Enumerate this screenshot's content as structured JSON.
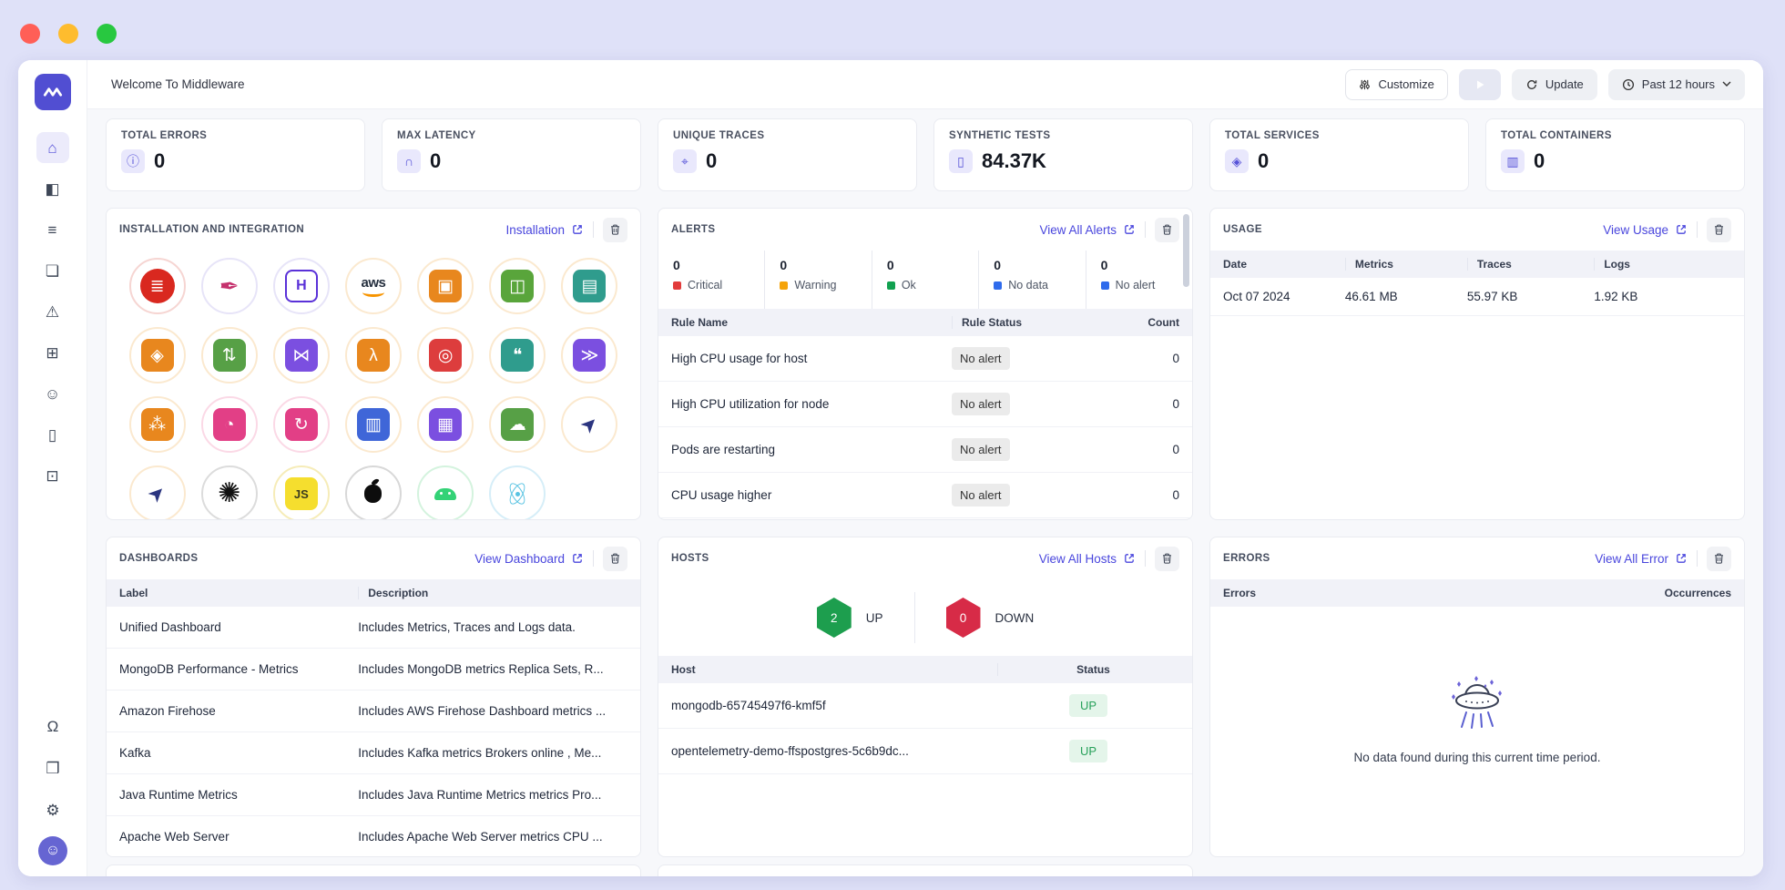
{
  "header": {
    "title": "Welcome To Middleware",
    "customize_label": "Customize",
    "update_label": "Update",
    "time_range_label": "Past 12 hours"
  },
  "sidebar": {
    "top_icons": [
      {
        "name": "home",
        "glyph": "⌂",
        "active": true
      },
      {
        "name": "infrastructure",
        "glyph": "◧",
        "active": false
      },
      {
        "name": "logs",
        "glyph": "≡",
        "active": false
      },
      {
        "name": "traces",
        "glyph": "❏",
        "active": false
      },
      {
        "name": "alerts",
        "glyph": "⚠",
        "active": false
      },
      {
        "name": "add-widget",
        "glyph": "⊞",
        "active": false
      },
      {
        "name": "ai-bot",
        "glyph": "☺",
        "active": false
      },
      {
        "name": "synthetic-tests",
        "glyph": "▯",
        "active": false
      },
      {
        "name": "processor",
        "glyph": "⊡",
        "active": false
      }
    ],
    "bottom_icons": [
      {
        "name": "support-headset",
        "glyph": "Ω"
      },
      {
        "name": "package",
        "glyph": "❒"
      },
      {
        "name": "settings",
        "glyph": "⚙"
      }
    ],
    "avatar_glyph": "☺"
  },
  "stats": [
    {
      "label": "TOTAL ERRORS",
      "value": "0",
      "icon": "error-info",
      "glyph": "ⓘ"
    },
    {
      "label": "MAX LATENCY",
      "value": "0",
      "icon": "latency-gauge",
      "glyph": "∩"
    },
    {
      "label": "UNIQUE TRACES",
      "value": "0",
      "icon": "trace-search",
      "glyph": "⌖"
    },
    {
      "label": "SYNTHETIC TESTS",
      "value": "84.37K",
      "icon": "synthetic-mobile",
      "glyph": "▯"
    },
    {
      "label": "TOTAL SERVICES",
      "value": "0",
      "icon": "services-hex",
      "glyph": "◈"
    },
    {
      "label": "TOTAL CONTAINERS",
      "value": "0",
      "icon": "containers",
      "glyph": "▥"
    }
  ],
  "installation": {
    "title": "INSTALLATION AND INTEGRATION",
    "link_label": "Installation",
    "icons": [
      {
        "name": "redis",
        "ring": "#f6d5d2",
        "tile": "#d9281f",
        "shape": "circle",
        "glyph": "≣"
      },
      {
        "name": "apache",
        "ring": "#e7e4f8",
        "tile": "none",
        "glyph": "✒",
        "color": "#c5316d",
        "size": "26"
      },
      {
        "name": "h-framework",
        "ring": "#e7e4f8",
        "tile": "outline",
        "glyph": "H",
        "color": "#5a31d8"
      },
      {
        "name": "aws",
        "ring": "#fbe9cf",
        "special": "aws",
        "label": "aws"
      },
      {
        "name": "aws-chip",
        "ring": "#fbe9cf",
        "tile": "#e8871e",
        "glyph": "▣"
      },
      {
        "name": "s3-bucket",
        "ring": "#fbe9cf",
        "tile": "#59a53b",
        "glyph": "◫"
      },
      {
        "name": "doc-scan",
        "ring": "#fbe9cf",
        "tile": "#2f9c8d",
        "glyph": "▤"
      },
      {
        "name": "hexagon-service",
        "ring": "#fbe9cf",
        "tile": "#e8871e",
        "glyph": "◈"
      },
      {
        "name": "scale-cylinder",
        "ring": "#fbe9cf",
        "tile": "#57a046",
        "glyph": "⇅"
      },
      {
        "name": "pipeline",
        "ring": "#fbe9cf",
        "tile": "#7b4fe0",
        "glyph": "⋈"
      },
      {
        "name": "lambda",
        "ring": "#fbe9cf",
        "tile": "#e8871e",
        "glyph": "λ"
      },
      {
        "name": "firewall",
        "ring": "#fbe9cf",
        "tile": "#dd3d3d",
        "glyph": "◎"
      },
      {
        "name": "chat-service",
        "ring": "#fbe9cf",
        "tile": "#2f9c8d",
        "glyph": "❝"
      },
      {
        "name": "streams",
        "ring": "#fbe9cf",
        "tile": "#7b4fe0",
        "glyph": "≫"
      },
      {
        "name": "share-nodes",
        "ring": "#fbe9cf",
        "tile": "#e8871e",
        "glyph": "⁂"
      },
      {
        "name": "gauge-pink",
        "ring": "#fbd9e6",
        "tile": "#e23f86",
        "glyph": "◔"
      },
      {
        "name": "sync-pink",
        "ring": "#fbd9e6",
        "tile": "#e23f86",
        "glyph": "↻"
      },
      {
        "name": "archive-db",
        "ring": "#fbe9cf",
        "tile": "#3f66d8",
        "glyph": "▥"
      },
      {
        "name": "chart-search",
        "ring": "#fbe9cf",
        "tile": "#7b4fe0",
        "glyph": "▦"
      },
      {
        "name": "cloud-scale",
        "ring": "#fbe9cf",
        "tile": "#57a046",
        "glyph": "☁"
      },
      {
        "name": "opentelemetry",
        "ring": "#fbe9cf",
        "special": "telescope",
        "glyph": "➤"
      },
      {
        "name": "opentelemetry-2",
        "ring": "#fbe9cf",
        "special": "telescope",
        "glyph": "➤"
      },
      {
        "name": "ray",
        "ring": "#dcdcdc",
        "tile": "none",
        "glyph": "✺",
        "color": "#111111",
        "size": "30"
      },
      {
        "name": "javascript",
        "ring": "#f6ecb8",
        "tile": "#f5de2e",
        "glyph": "JS",
        "color": "#3a3a20",
        "text": true
      },
      {
        "name": "apple",
        "ring": "#d8d8d8",
        "special": "apple"
      },
      {
        "name": "android",
        "ring": "#d4f3de",
        "special": "android"
      },
      {
        "name": "react",
        "ring": "#d6eef8",
        "special": "react"
      }
    ]
  },
  "alerts": {
    "title": "ALERTS",
    "link_label": "View All Alerts",
    "summary": [
      {
        "count": "0",
        "label": "Critical",
        "color": "#e23b3b"
      },
      {
        "count": "0",
        "label": "Warning",
        "color": "#f5a309"
      },
      {
        "count": "0",
        "label": "Ok",
        "color": "#12a150"
      },
      {
        "count": "0",
        "label": "No data",
        "color": "#2f6bec"
      },
      {
        "count": "0",
        "label": "No alert",
        "color": "#2f6bec"
      }
    ],
    "columns": [
      "Rule Name",
      "Rule Status",
      "Count"
    ],
    "rows": [
      {
        "name": "High CPU usage for host",
        "status": "No alert",
        "count": "0"
      },
      {
        "name": "High CPU utilization for node",
        "status": "No alert",
        "count": "0"
      },
      {
        "name": "Pods are restarting",
        "status": "No alert",
        "count": "0"
      },
      {
        "name": "CPU usage higher",
        "status": "No alert",
        "count": "0"
      }
    ]
  },
  "usage": {
    "title": "USAGE",
    "link_label": "View Usage",
    "columns": [
      "Date",
      "Metrics",
      "Traces",
      "Logs"
    ],
    "rows": [
      [
        "Oct 07 2024",
        "46.61 MB",
        "55.97 KB",
        "1.92 KB"
      ]
    ]
  },
  "dashboards": {
    "title": "DASHBOARDS",
    "link_label": "View Dashboard",
    "columns": [
      "Label",
      "Description"
    ],
    "rows": [
      [
        "Unified Dashboard",
        "Includes Metrics, Traces and Logs data."
      ],
      [
        "MongoDB Performance - Metrics",
        "Includes MongoDB metrics Replica Sets, R..."
      ],
      [
        "Amazon Firehose",
        "Includes AWS Firehose Dashboard metrics ..."
      ],
      [
        "Kafka",
        "Includes Kafka metrics Brokers online , Me..."
      ],
      [
        "Java Runtime Metrics",
        "Includes Java Runtime Metrics metrics Pro..."
      ],
      [
        "Apache Web Server",
        "Includes Apache Web Server metrics CPU ..."
      ]
    ]
  },
  "hosts": {
    "title": "HOSTS",
    "link_label": "View All Hosts",
    "up_count": "2",
    "up_label": "UP",
    "down_count": "0",
    "down_label": "DOWN",
    "columns": [
      "Host",
      "Status"
    ],
    "rows": [
      {
        "host": "mongodb-65745497f6-kmf5f",
        "status": "UP"
      },
      {
        "host": "opentelemetry-demo-ffspostgres-5c6b9dc...",
        "status": "UP"
      }
    ]
  },
  "errors": {
    "title": "ERRORS",
    "link_label": "View All Error",
    "columns": [
      "Errors",
      "Occurrences"
    ],
    "empty_message": "No data found during this current time period."
  },
  "colors": {
    "accent": "#4946dd",
    "critical": "#e23b3b",
    "warning": "#f5a309",
    "ok": "#12a150",
    "info_blue": "#2f6bec",
    "up_green": "#1d9e4e",
    "down_red": "#d72b47"
  }
}
